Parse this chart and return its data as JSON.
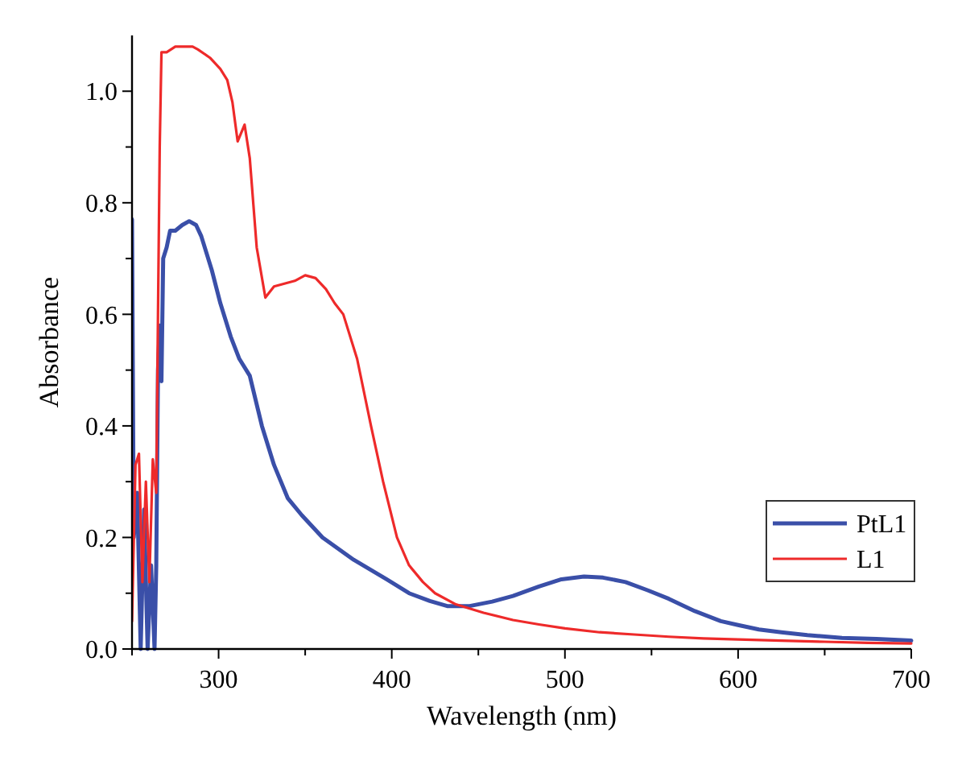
{
  "chart_data": {
    "type": "line",
    "xlabel": "Wavelength (nm)",
    "ylabel": "Absorbance",
    "xlim": [
      250,
      700
    ],
    "ylim": [
      0,
      1.1
    ],
    "xticks": [
      {
        "value": 250,
        "label": null
      },
      300,
      {
        "value": 350,
        "label": null
      },
      400,
      {
        "value": 450,
        "label": null
      },
      500,
      {
        "value": 550,
        "label": null
      },
      600,
      {
        "value": 650,
        "label": null
      },
      700
    ],
    "yticks": [
      "0.0",
      {
        "value": 0.1,
        "label": null
      },
      0.2,
      {
        "value": 0.3,
        "label": null
      },
      0.4,
      {
        "value": 0.5,
        "label": null
      },
      0.6,
      {
        "value": 0.7,
        "label": null
      },
      0.8,
      {
        "value": 0.9,
        "label": null
      },
      {
        "value": 1,
        "label": "1.0"
      }
    ],
    "legend": "bottom right",
    "grid": false,
    "marker": "none",
    "line_style": "solid",
    "series": [
      {
        "name": "PtL1",
        "color": "#3a4fa8",
        "x": [
          250,
          251,
          253,
          255,
          257,
          259,
          261,
          263,
          264,
          265,
          266,
          267,
          268,
          270,
          272,
          275,
          279,
          283,
          287,
          290,
          296,
          301,
          307,
          312,
          318,
          325,
          332,
          340,
          348,
          360,
          378,
          397,
          410,
          422,
          432,
          445,
          458,
          470,
          485,
          498,
          511,
          522,
          535,
          548,
          560,
          575,
          590,
          600,
          612,
          625,
          640,
          660,
          680,
          700
        ],
        "values": [
          0.77,
          0.2,
          0.28,
          0.0,
          0.25,
          0.0,
          0.15,
          0.0,
          0.15,
          0.5,
          0.58,
          0.48,
          0.7,
          0.72,
          0.75,
          0.75,
          0.76,
          0.767,
          0.76,
          0.74,
          0.68,
          0.62,
          0.56,
          0.52,
          0.49,
          0.4,
          0.33,
          0.27,
          0.24,
          0.2,
          0.16,
          0.125,
          0.1,
          0.086,
          0.077,
          0.077,
          0.085,
          0.095,
          0.112,
          0.125,
          0.13,
          0.128,
          0.12,
          0.105,
          0.09,
          0.068,
          0.05,
          0.043,
          0.035,
          0.03,
          0.025,
          0.02,
          0.018,
          0.015
        ]
      },
      {
        "name": "L1",
        "color": "#ee2a2a",
        "x": [
          250,
          252,
          254,
          256,
          258,
          260,
          262,
          264,
          265,
          266,
          267,
          270,
          275,
          280,
          285,
          288,
          295,
          301,
          305,
          308,
          311,
          315,
          318,
          322,
          327,
          332,
          338,
          344,
          350,
          356,
          362,
          367,
          372,
          380,
          388,
          395,
          403,
          410,
          418,
          425,
          437,
          453,
          470,
          485,
          500,
          520,
          540,
          560,
          580,
          600,
          625,
          650,
          675,
          700
        ],
        "values": [
          0.05,
          0.33,
          0.35,
          0.12,
          0.3,
          0.12,
          0.34,
          0.28,
          0.6,
          0.9,
          1.07,
          1.07,
          1.08,
          1.08,
          1.08,
          1.075,
          1.06,
          1.04,
          1.02,
          0.98,
          0.91,
          0.94,
          0.88,
          0.72,
          0.63,
          0.65,
          0.655,
          0.66,
          0.67,
          0.665,
          0.645,
          0.62,
          0.6,
          0.52,
          0.4,
          0.3,
          0.2,
          0.15,
          0.12,
          0.1,
          0.08,
          0.065,
          0.052,
          0.044,
          0.037,
          0.03,
          0.026,
          0.022,
          0.019,
          0.017,
          0.015,
          0.013,
          0.011,
          0.01
        ]
      }
    ]
  }
}
